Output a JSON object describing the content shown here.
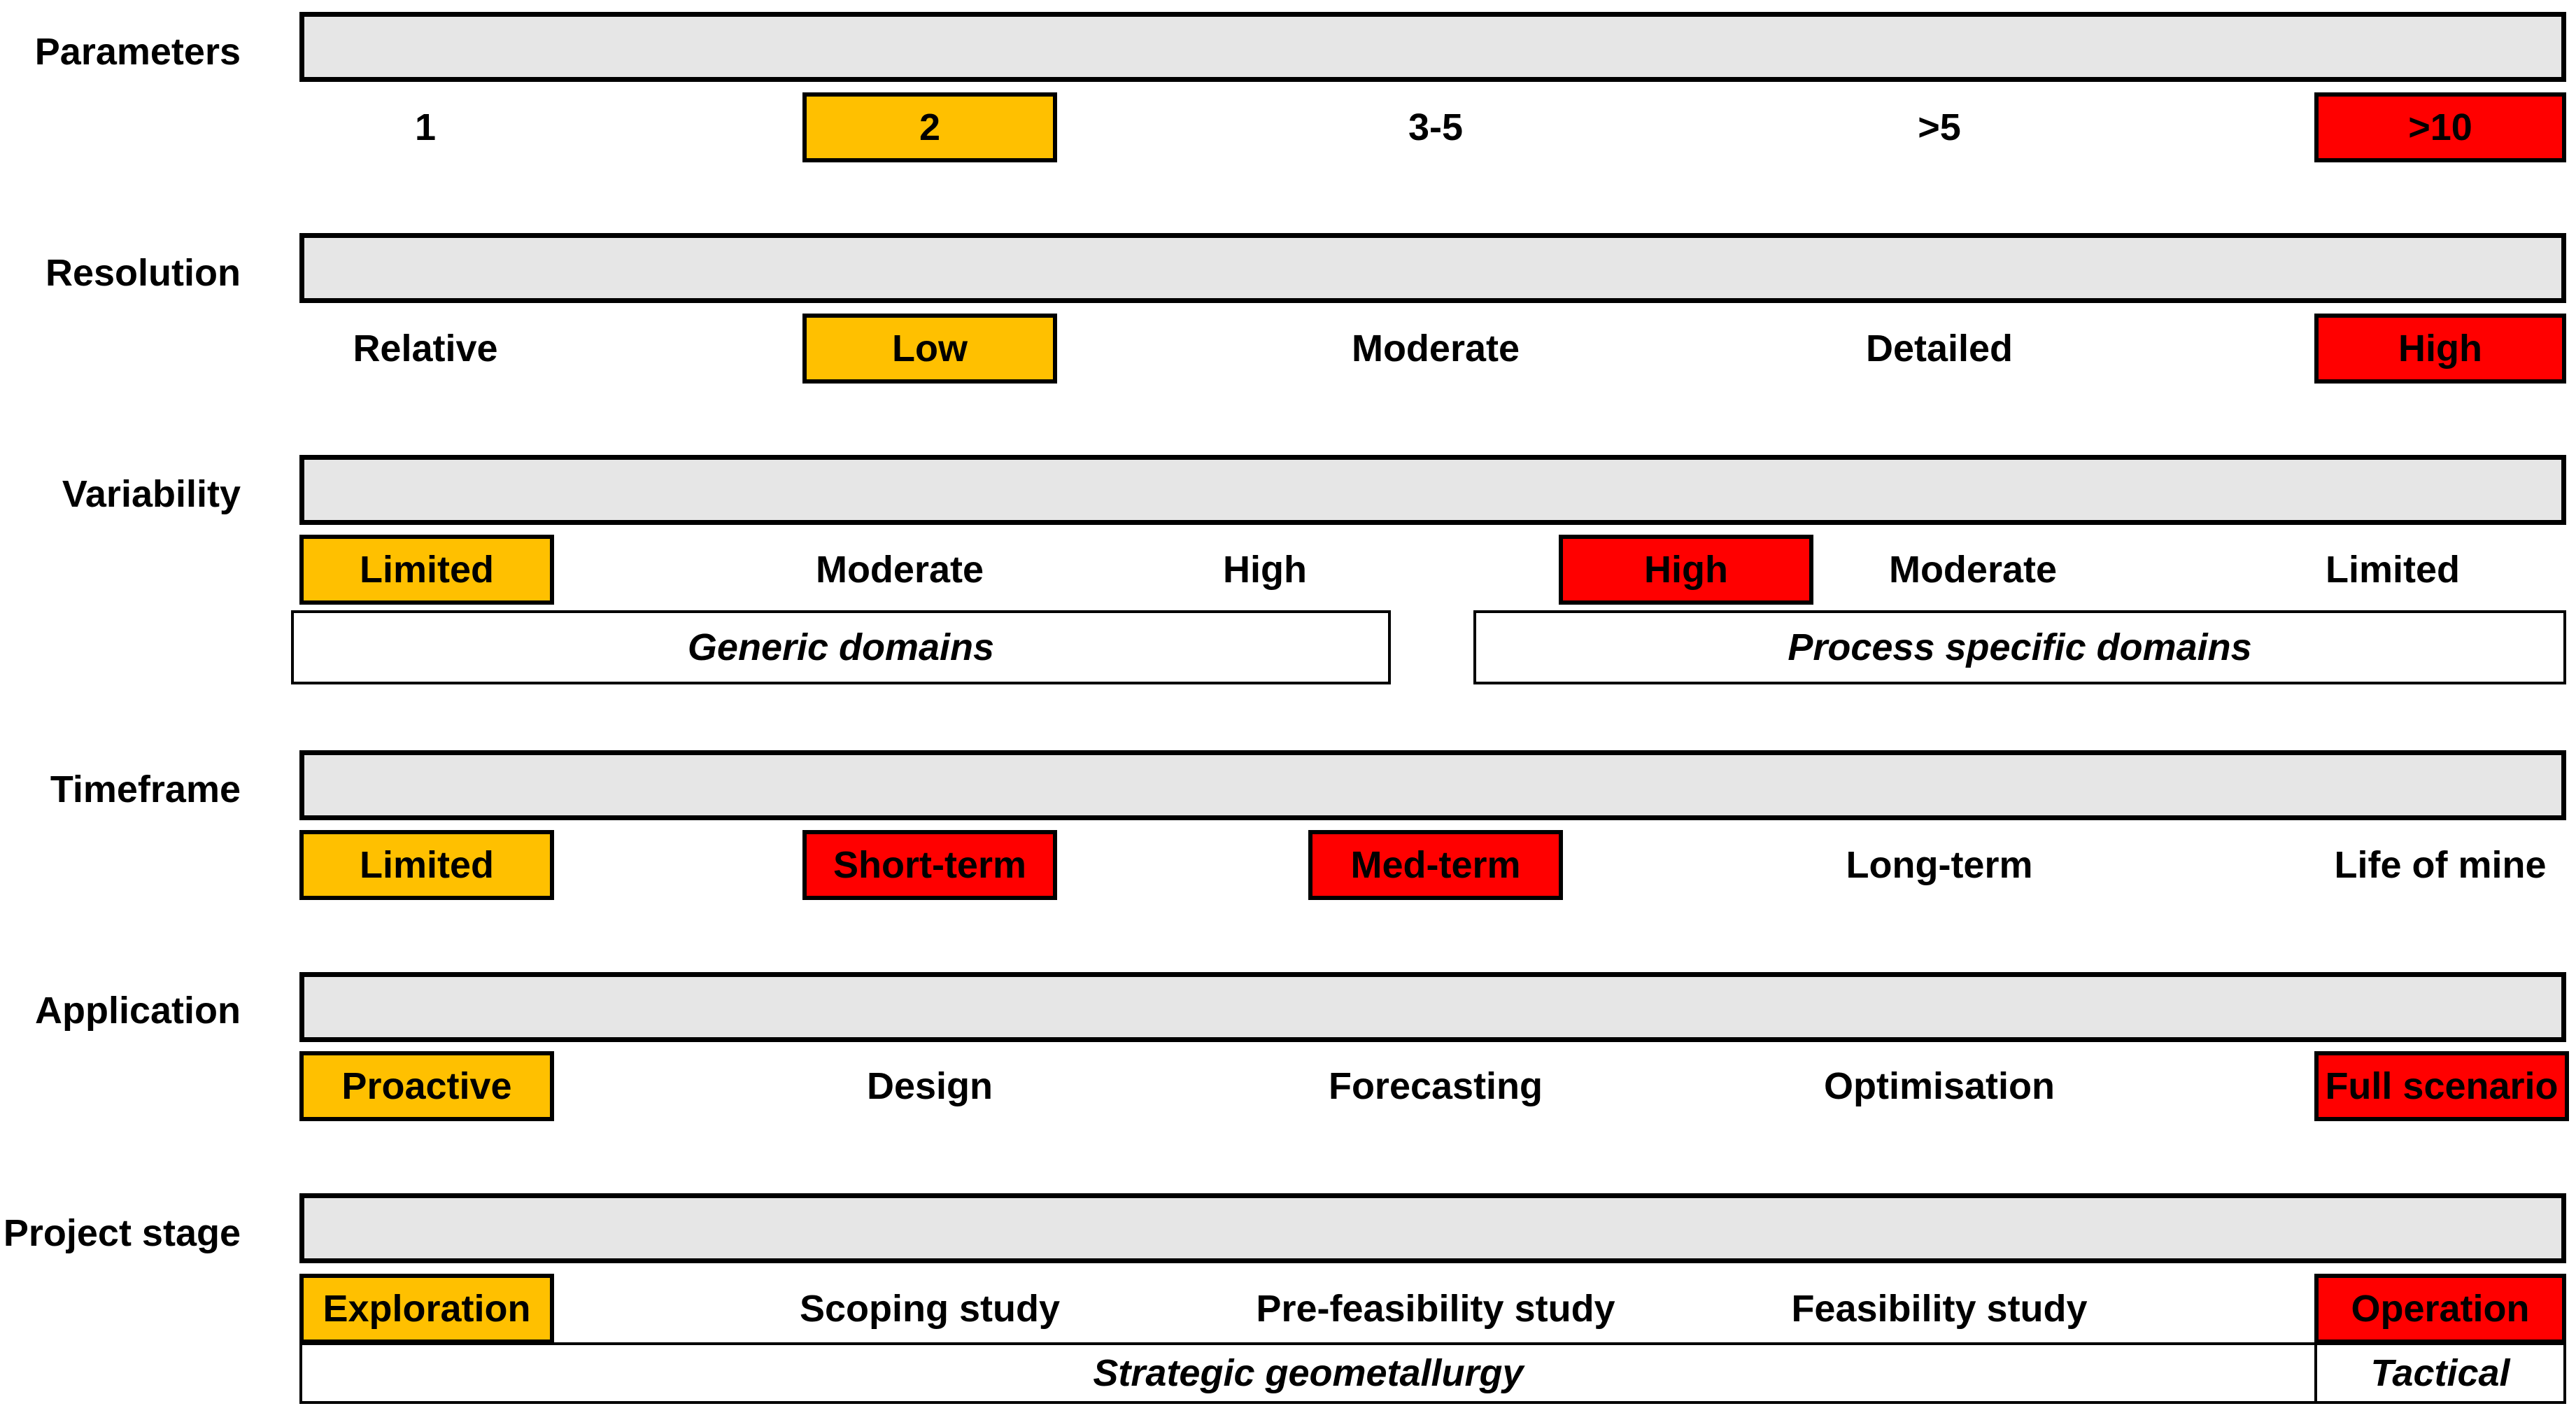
{
  "rows": {
    "parameters": {
      "label": "Parameters",
      "cells": [
        "1",
        "2",
        "3-5",
        ">5",
        ">10"
      ]
    },
    "resolution": {
      "label": "Resolution",
      "cells": [
        "Relative",
        "Low",
        "Moderate",
        "Detailed",
        "High"
      ]
    },
    "variability": {
      "label": "Variability",
      "cells": [
        "Limited",
        "Moderate",
        "High",
        "High",
        "Moderate",
        "Limited"
      ],
      "bands": [
        "Generic domains",
        "Process specific domains"
      ]
    },
    "timeframe": {
      "label": "Timeframe",
      "cells": [
        "Limited",
        "Short-term",
        "Med-term",
        "Long-term",
        "Life of mine"
      ]
    },
    "application": {
      "label": "Application",
      "cells": [
        "Proactive",
        "Design",
        "Forecasting",
        "Optimisation",
        "Full scenario"
      ]
    },
    "project_stage": {
      "label": "Project stage",
      "cells": [
        "Exploration",
        "Scoping study",
        "Pre-feasibility study",
        "Feasibility study",
        "Operation"
      ],
      "bands": [
        "Strategic geometallurgy",
        "Tactical"
      ]
    }
  },
  "colors": {
    "orange": "#ffc000",
    "red": "#ff0000",
    "bar": "#e6e6e6"
  }
}
